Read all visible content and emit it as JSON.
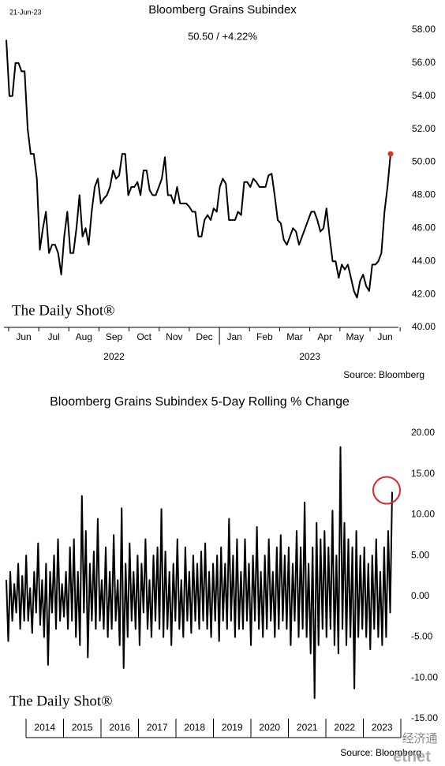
{
  "chart_data": [
    {
      "type": "line",
      "date": "21-Jun-23",
      "title": "Bloomberg Grains Subindex",
      "subtitle": "50.50  /  +4.22%",
      "x_labels": [
        "Jun",
        "Jul",
        "Aug",
        "Sep",
        "Oct",
        "Nov",
        "Dec",
        "Jan",
        "Feb",
        "Mar",
        "Apr",
        "May",
        "Jun"
      ],
      "year_labels": [
        "2022",
        "2023"
      ],
      "values": [
        57.4,
        54,
        54,
        56,
        56,
        55.5,
        55.5,
        52,
        50.5,
        50.5,
        49,
        44.7,
        46,
        47,
        44.5,
        45,
        45,
        44.5,
        43.2,
        45.5,
        47,
        44.5,
        44.5,
        46,
        48,
        45.5,
        46,
        45,
        47,
        48.5,
        49,
        47.5,
        47.8,
        48,
        48.5,
        49.5,
        49,
        49.2,
        50.5,
        50.5,
        48,
        48.5,
        48.5,
        48.8,
        48,
        49.5,
        49.5,
        48.3,
        48,
        48,
        48.5,
        49,
        50.3,
        48,
        48,
        47.5,
        48.5,
        47.5,
        47.5,
        47.5,
        47.3,
        47,
        47,
        45.5,
        45.5,
        46.5,
        46.8,
        46.5,
        47.2,
        47,
        48.5,
        49,
        48.7,
        46.5,
        46.5,
        46.5,
        47,
        46.8,
        48.8,
        48.8,
        48.5,
        49,
        48.8,
        48.5,
        48.5,
        48.5,
        49.2,
        49.3,
        48,
        46.5,
        46.3,
        45.3,
        45,
        45.5,
        46,
        45.8,
        45,
        45.5,
        46,
        46.5,
        47,
        47,
        46.5,
        45.8,
        46,
        47.2,
        45.5,
        44,
        44,
        43,
        43.8,
        43.5,
        43.8,
        43,
        42.2,
        41.8,
        42.8,
        43.2,
        42.5,
        42.2,
        43.8,
        43.8,
        44,
        44.5,
        47,
        48.5,
        50.5
      ],
      "color": "#000000",
      "marker_color": "#e03030",
      "ylim": [
        40,
        58
      ],
      "yticks": [
        {
          "value": 40,
          "label": "40.00"
        },
        {
          "value": 42,
          "label": "42.00"
        },
        {
          "value": 44,
          "label": "44.00"
        },
        {
          "value": 46,
          "label": "46.00"
        },
        {
          "value": 48,
          "label": "48.00"
        },
        {
          "value": 50,
          "label": "50.00"
        },
        {
          "value": 52,
          "label": "52.00"
        },
        {
          "value": 54,
          "label": "54.00"
        },
        {
          "value": 56,
          "label": "56.00"
        },
        {
          "value": 58,
          "label": "58.00"
        }
      ],
      "logo": "The Daily Shot®",
      "source": "Source: Bloomberg"
    },
    {
      "type": "line",
      "title": "Bloomberg Grains Subindex 5-Day Rolling % Change",
      "x_labels": [
        "2014",
        "2015",
        "2016",
        "2017",
        "2018",
        "2019",
        "2020",
        "2021",
        "2022",
        "2023"
      ],
      "values": [
        2,
        -5.5,
        3,
        -3,
        1.5,
        -2,
        4,
        -4,
        2.5,
        -3,
        5,
        -3,
        1,
        -4.5,
        3,
        -2,
        6.5,
        -3.5,
        2,
        -5,
        4,
        -8.4,
        3,
        -2,
        5,
        -4,
        7,
        -3,
        1.5,
        -2.5,
        3,
        -4,
        6,
        -3,
        7,
        -5,
        3,
        -6,
        12.3,
        -2,
        8,
        -7.5,
        4,
        -3,
        5.5,
        -4,
        9.5,
        -3,
        2,
        -4,
        6,
        -5,
        3,
        -4,
        7.5,
        -3,
        2,
        -6,
        10.8,
        -8.8,
        4,
        -5,
        6.5,
        -3,
        3,
        -4,
        5,
        -6,
        4,
        -2,
        7,
        -4,
        2,
        -5,
        5,
        -3,
        6,
        -4,
        10.7,
        -5,
        5.5,
        -4,
        3,
        -6,
        4,
        -3,
        7,
        -4,
        2,
        -5,
        6,
        -3,
        3,
        -4.5,
        5,
        -3,
        4,
        -4,
        5.5,
        -3,
        6.5,
        -4,
        3,
        -5,
        4,
        -3,
        5,
        -5.5,
        6,
        -3,
        4,
        -4,
        9.5,
        -3,
        5,
        -5,
        7,
        -4,
        3,
        -4,
        7,
        -3,
        4,
        -6,
        5,
        -3,
        8.5,
        -4,
        3,
        -5,
        5,
        -4,
        7,
        -3,
        3,
        -5,
        6,
        -4,
        7.5,
        -3,
        5,
        -4,
        6,
        -6,
        4,
        -3,
        8,
        -5,
        6,
        -4,
        11.5,
        -5,
        4,
        -7,
        6,
        -12.5,
        9,
        -6,
        7,
        -4,
        8,
        -5,
        6,
        -4,
        10.5,
        -6,
        5,
        -7,
        18.3,
        -4,
        9,
        -6,
        7,
        -5,
        6,
        -11.3,
        8,
        -5,
        5,
        -4,
        6,
        -5,
        4,
        -6.5,
        5,
        -4,
        7,
        -5,
        3,
        -6,
        6,
        -5,
        8,
        -2,
        12.8
      ],
      "color": "#000000",
      "highlight_color": "#d42a2a",
      "ylim": [
        -15,
        20
      ],
      "yticks": [
        {
          "value": -15,
          "label": "-15.00"
        },
        {
          "value": -10,
          "label": "-10.00"
        },
        {
          "value": -5,
          "label": "-5.00"
        },
        {
          "value": 0,
          "label": "0.00"
        },
        {
          "value": 5,
          "label": "5.00"
        },
        {
          "value": 10,
          "label": "10.00"
        },
        {
          "value": 15,
          "label": "15.00"
        },
        {
          "value": 20,
          "label": "20.00"
        }
      ],
      "logo": "The Daily Shot®",
      "source": "Source: Bloomberg",
      "watermark": "经济通",
      "watermark_brand": "etnet"
    }
  ]
}
